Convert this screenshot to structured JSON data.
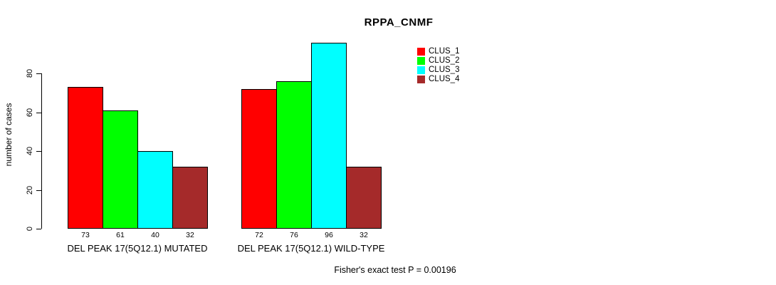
{
  "chart_data": {
    "type": "bar",
    "title": "RPPA_CNMF",
    "ylabel": "number of cases",
    "xlabel": "",
    "ylim": [
      0,
      80
    ],
    "yticks": [
      0,
      20,
      40,
      60,
      80
    ],
    "grid": false,
    "legend_position": "top-right",
    "bar_border_color": "#000000",
    "background_color": "#ffffff",
    "series": [
      {
        "name": "CLUS_1",
        "color": "#ff0000"
      },
      {
        "name": "CLUS_2",
        "color": "#00ff00"
      },
      {
        "name": "CLUS_3",
        "color": "#00ffff"
      },
      {
        "name": "CLUS_4",
        "color": "#a52a2a"
      }
    ],
    "groups": [
      {
        "label": "DEL PEAK 17(5Q12.1) MUTATED",
        "values": [
          73,
          61,
          40,
          32
        ]
      },
      {
        "label": "DEL PEAK 17(5Q12.1) WILD-TYPE",
        "values": [
          72,
          76,
          96,
          32
        ]
      }
    ],
    "annotation": "Fisher's exact test P = 0.00196"
  }
}
